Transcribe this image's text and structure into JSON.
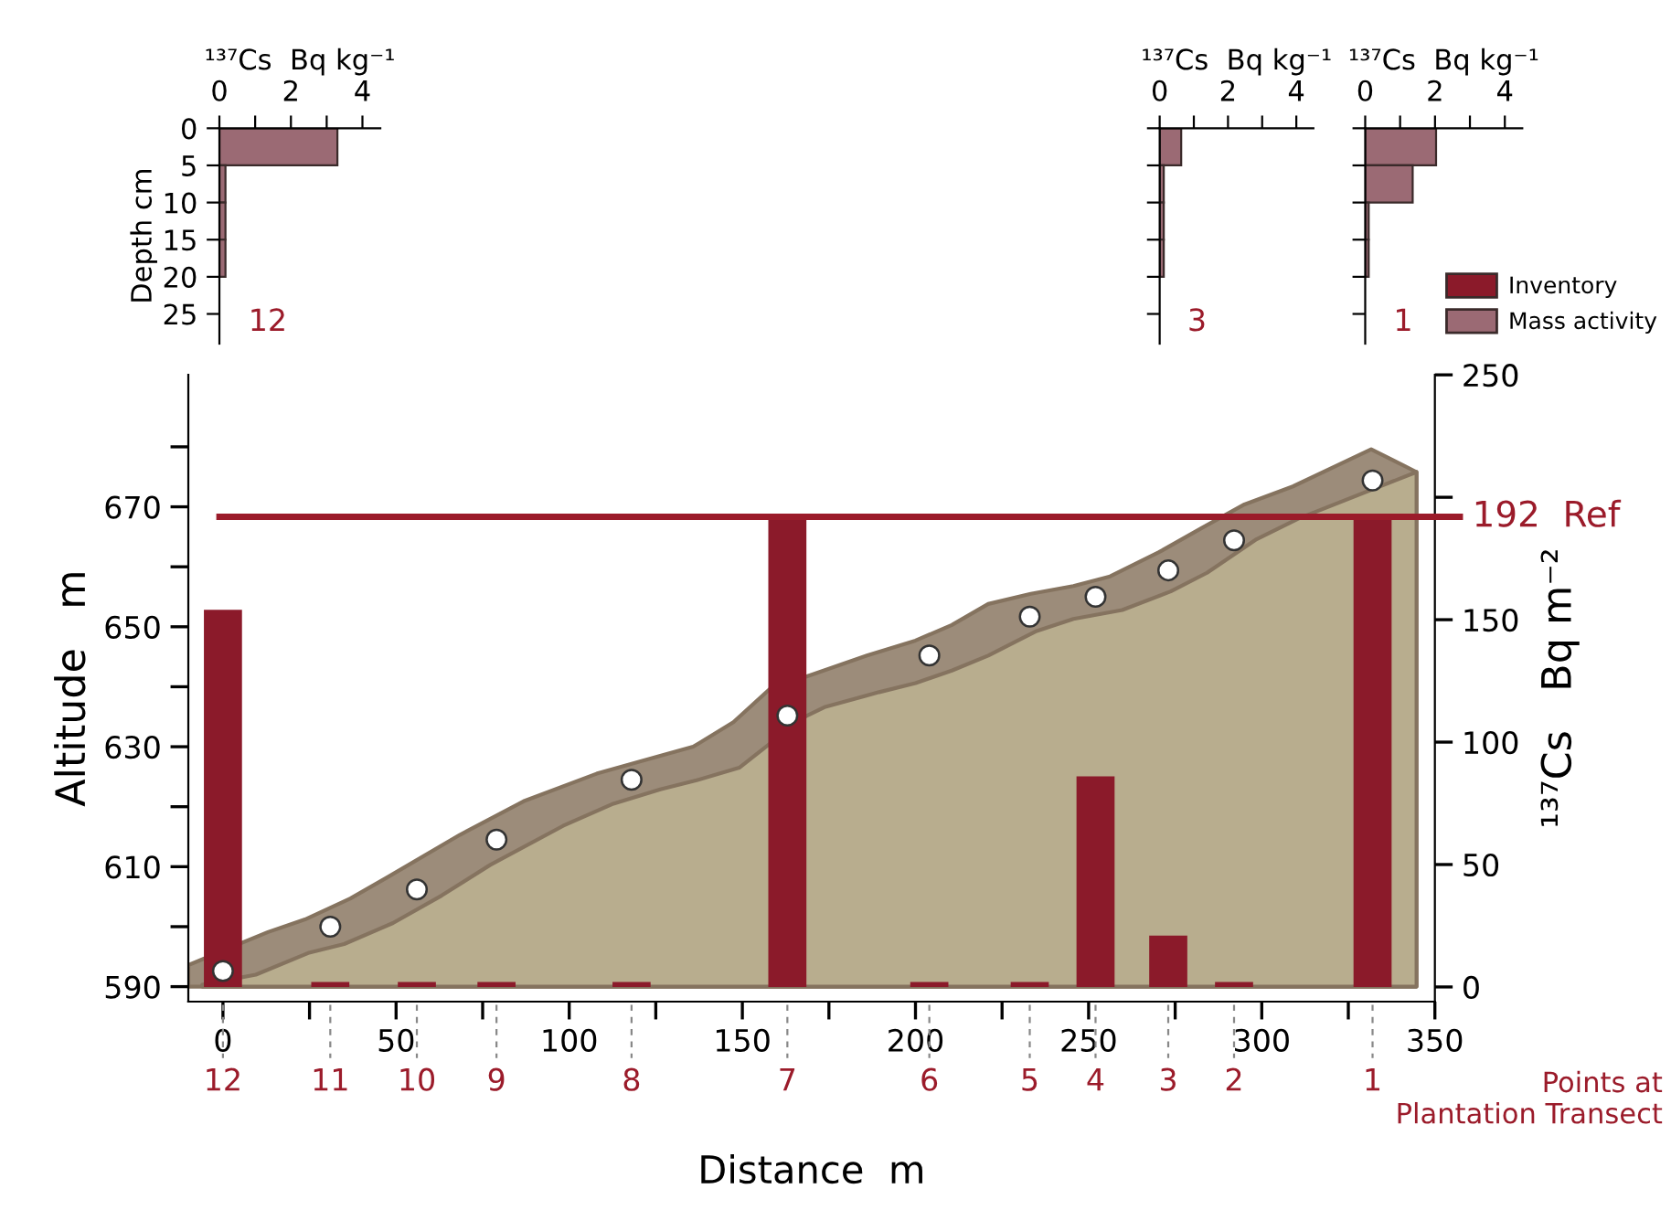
{
  "chart_data": [
    {
      "type": "bar",
      "orientation": "horizontal",
      "xlabel": "¹³⁷Cs  Bq kg⁻¹",
      "ylabel": "Depth cm",
      "x": [
        2.5,
        7.5,
        12.5,
        17.5
      ],
      "series": [
        {
          "name": "Mass activity",
          "color": "#9b6a74",
          "values": [
            3.3,
            0.17,
            0.17,
            0.17
          ]
        }
      ],
      "xlim": [
        0,
        4.5
      ],
      "xticks": [
        0,
        {
          "value": 1,
          "label": null
        },
        2,
        {
          "value": 3,
          "label": null
        },
        4
      ],
      "ylim": [
        29,
        0
      ],
      "yticks": [
        0,
        5,
        10,
        15,
        20,
        25
      ],
      "annotations": [
        "12"
      ]
    },
    {
      "type": "bar",
      "orientation": "horizontal",
      "xlabel": "¹³⁷Cs  Bq kg⁻¹",
      "x": [
        2.5,
        7.5,
        12.5,
        17.5
      ],
      "series": [
        {
          "color": "#9b6a74",
          "values": [
            0.63,
            0.12,
            0.12,
            0.12
          ]
        }
      ],
      "xlim": [
        0,
        4.5
      ],
      "xticks": [
        0,
        {
          "value": 1,
          "label": null
        },
        2,
        {
          "value": 3,
          "label": null
        },
        4
      ],
      "ylim": [
        29,
        0
      ],
      "yticks": [
        0,
        5,
        10,
        15,
        20,
        25
      ],
      "tick_labels": "x",
      "annotations": [
        "3"
      ]
    },
    {
      "type": "bar",
      "orientation": "horizontal",
      "xlabel": "¹³⁷Cs  Bq kg⁻¹",
      "x": [
        2.5,
        7.5,
        12.5,
        17.5
      ],
      "series": [
        {
          "color": "#9b6a74",
          "values": [
            2.03,
            1.36,
            0.1,
            0.1
          ]
        }
      ],
      "xlim": [
        0,
        4.5
      ],
      "xticks": [
        0,
        {
          "value": 1,
          "label": null
        },
        2,
        {
          "value": 3,
          "label": null
        },
        4
      ],
      "ylim": [
        29,
        0
      ],
      "yticks": [
        0,
        5,
        10,
        15,
        20,
        25
      ],
      "tick_labels": "x",
      "annotations": [
        "1"
      ]
    },
    {
      "type": "area",
      "xlabel": "Distance  m",
      "ylabel": "Altitude   m",
      "y2label": "¹³⁷Cs   Bq m⁻²",
      "x2label": "Points at\nPlantation Transect",
      "series": [
        {
          "type": "area",
          "color": "#9c8c7a",
          "x": [
            -10,
            13,
            23.7,
            36.8,
            47.4,
            68.4,
            86.8,
            107.9,
            126.3,
            135.8,
            147.4,
            157.9,
            171,
            186,
            200,
            210.5,
            221,
            233.3,
            245.6,
            256.2,
            270.2,
            282.5,
            295,
            309,
            331.6,
            344.7
          ],
          "values": [
            593.6,
            599.1,
            601.2,
            604.7,
            608.2,
            615.3,
            620.9,
            625.5,
            628.5,
            630,
            634.1,
            639.6,
            642.2,
            645.2,
            647.7,
            650.3,
            653.8,
            655.5,
            656.8,
            658.4,
            662.4,
            666.4,
            670.4,
            673.4,
            679.6,
            675.8
          ]
        },
        {
          "type": "area",
          "color": "#b8ad8e",
          "x": [
            -6,
            9.5,
            24.6,
            35,
            49.1,
            63.2,
            77.2,
            98.2,
            112.3,
            126.3,
            136.8,
            149.1,
            157.9,
            168.4,
            173.7,
            189.5,
            200,
            210.5,
            221,
            235,
            245.6,
            259.7,
            273.7,
            284.2,
            298.2,
            310.5,
            344.7
          ],
          "values": [
            590.3,
            592,
            595.6,
            597.1,
            600.6,
            605.2,
            610.3,
            616.8,
            620.4,
            622.9,
            624.4,
            626.5,
            630.5,
            635.1,
            636.6,
            639.1,
            640.6,
            642.7,
            645.2,
            649.3,
            651.3,
            652.8,
            655.9,
            659,
            664.5,
            668,
            675.8
          ]
        },
        {
          "type": "bar",
          "axis": "y2",
          "name": "Inventory",
          "color": "#8b1a2a",
          "x": [
            0,
            31,
            56,
            79,
            118,
            163,
            204,
            233,
            252,
            273,
            292,
            332
          ],
          "values": [
            154,
            2,
            2,
            2,
            2,
            191,
            2,
            2,
            86,
            21,
            2,
            193
          ]
        },
        {
          "type": "scatter",
          "color": "#ffffff",
          "marker": "circle",
          "x": [
            0,
            31,
            56,
            79,
            118,
            163,
            204,
            233,
            252,
            273,
            292,
            332
          ],
          "values": [
            592.6,
            600,
            606.2,
            614.5,
            624.5,
            635.2,
            645.2,
            651.7,
            655,
            659.4,
            664.4,
            674.4
          ]
        }
      ],
      "xlim": [
        -10,
        350
      ],
      "xticks": [
        0,
        {
          "value": 25,
          "label": null
        },
        50,
        {
          "value": 75,
          "label": null
        },
        100,
        {
          "value": 125,
          "label": null
        },
        150,
        {
          "value": 175,
          "label": null
        },
        200,
        {
          "value": 225,
          "label": null
        },
        250,
        {
          "value": 275,
          "label": null
        },
        300,
        {
          "value": 325,
          "label": null
        },
        350
      ],
      "ylim": [
        587.5,
        692
      ],
      "yticks": [
        590,
        {
          "value": 600,
          "label": null
        },
        610,
        {
          "value": 620,
          "label": null
        },
        630,
        {
          "value": 640,
          "label": null
        },
        650,
        {
          "value": 660,
          "label": null
        },
        670,
        {
          "value": 680,
          "label": null
        }
      ],
      "y2lim": [
        -6,
        250
      ],
      "y2ticks": [
        0,
        50,
        100,
        150,
        {
          "value": 200,
          "label": null
        },
        250
      ],
      "annotations": [
        {
          "text": "12",
          "x": 0
        },
        {
          "text": "11",
          "x": 31
        },
        {
          "text": "10",
          "x": 56
        },
        {
          "text": "9",
          "x": 79
        },
        {
          "text": "8",
          "x": 118
        },
        {
          "text": "7",
          "x": 163
        },
        {
          "text": "6",
          "x": 204
        },
        {
          "text": "5",
          "x": 233
        },
        {
          "text": "4",
          "x": 252
        },
        {
          "text": "3",
          "x": 273
        },
        {
          "text": "2",
          "x": 292
        },
        {
          "text": "1",
          "x": 332
        }
      ],
      "ref_lines": [
        {
          "axis": "y2",
          "value": 192,
          "label": "192  Ref",
          "color": "#9b1b2a"
        }
      ],
      "legend": "top right",
      "grid": false
    }
  ]
}
